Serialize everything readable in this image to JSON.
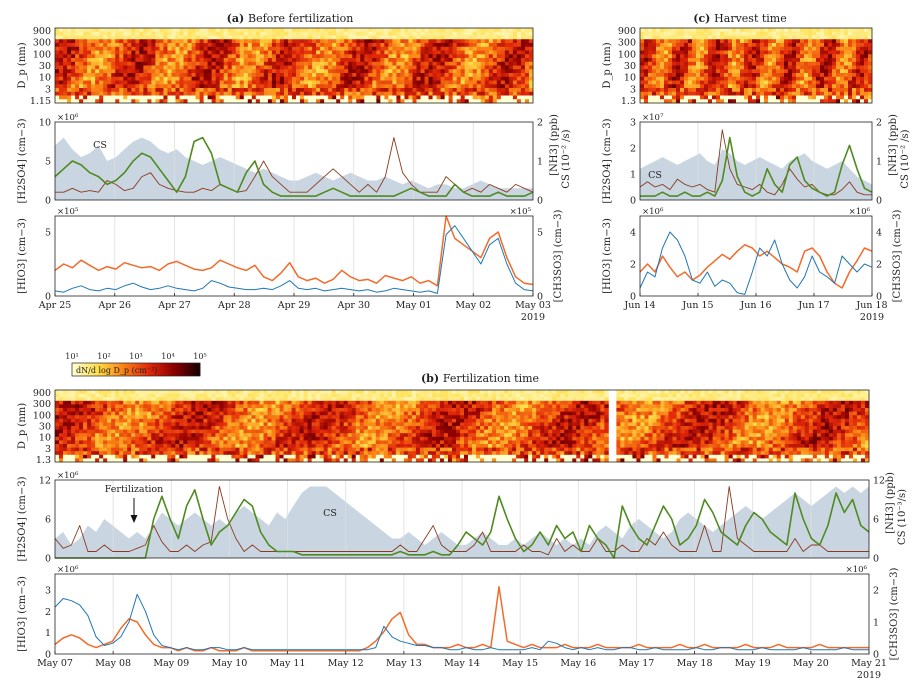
{
  "chart_data": [
    {
      "id": "a",
      "type": "area",
      "title_tag": "(a)",
      "title": "Before fertilization",
      "x_tick_labels": [
        "Apr 25",
        "Apr 26",
        "Apr 27",
        "Apr 28",
        "Apr 29",
        "Apr 30",
        "May 01",
        "May 02",
        "May 03"
      ],
      "year_label": "2019",
      "size_distribution": {
        "ylabel": "D_p (nm)",
        "y_tick_labels": [
          "900",
          "300",
          "100",
          "30",
          "10",
          "3",
          "1.15"
        ]
      },
      "h2so4_nh3_cs": {
        "left_label": "[H2SO4] (cm−3)",
        "left_multiplier": "×10⁶",
        "left_ticks": [
          0,
          5,
          10
        ],
        "right_label": "[NH3] (ppb)",
        "right_label2": "CS (10⁻² /s)",
        "right_ticks": [
          0,
          1,
          2
        ],
        "cs_text": "CS",
        "h2so4": [
          1,
          1,
          1.5,
          1,
          1.2,
          1,
          2.5,
          2,
          1.2,
          1.5,
          3,
          3.5,
          2,
          1.5,
          1.2,
          1,
          1,
          1.5,
          1.2,
          2,
          1.5,
          1,
          1.2,
          3,
          5,
          3,
          2,
          1,
          1,
          1,
          2,
          3,
          4,
          3,
          2,
          1,
          2,
          1,
          3,
          8,
          3.5,
          2,
          1,
          1,
          1,
          3,
          2,
          1,
          1.5,
          1,
          2,
          1.5,
          1,
          2,
          1.5,
          1
        ],
        "nh3": [
          0.6,
          0.8,
          1,
          0.9,
          0.7,
          0.6,
          0.4,
          0.5,
          0.7,
          1,
          1.2,
          1.1,
          0.8,
          0.5,
          0.2,
          0.6,
          1.5,
          1.6,
          1.2,
          0.4,
          0.3,
          0.2,
          0.7,
          1,
          0.4,
          0.2,
          0.1,
          0.1,
          0.1,
          0.1,
          0.1,
          0.2,
          0.3,
          0.2,
          0.1,
          0.1,
          0.1,
          0.1,
          0.1,
          0.1,
          0.2,
          0.3,
          0.2,
          0.1,
          0.1,
          0.1,
          0.4,
          0.2,
          0.1,
          0.1,
          0.1,
          0.2,
          0.1,
          0.1,
          0.1,
          0.2
        ],
        "cs": [
          1.4,
          1.6,
          1.3,
          1.1,
          1.2,
          1.4,
          1.0,
          1.1,
          1.3,
          1.5,
          1.6,
          1.5,
          1.3,
          1.2,
          1.3,
          1.1,
          1.0,
          0.9,
          1.0,
          1.1,
          1.0,
          0.9,
          0.8,
          0.7,
          0.8,
          0.7,
          0.6,
          0.5,
          0.5,
          0.6,
          0.7,
          0.6,
          0.5,
          0.6,
          0.7,
          0.6,
          0.5,
          0.5,
          0.6,
          0.5,
          0.4,
          0.5,
          0.4,
          0.3,
          0.4,
          0.4,
          0.3,
          0.3,
          0.4,
          0.5,
          0.4,
          0.3,
          0.3,
          0.3,
          0.3,
          0.3
        ]
      },
      "hio3_ch3so3": {
        "left_label": "[HIO3] (cm−3)",
        "left_multiplier": "×10⁵",
        "left_ticks": [
          0,
          5
        ],
        "right_label": "[CH3SO3] (cm−3)",
        "right_multiplier": "×10⁵",
        "right_ticks": [
          0,
          5
        ],
        "hio3": [
          0.4,
          0.3,
          0.6,
          0.8,
          0.5,
          0.4,
          0.6,
          0.5,
          0.8,
          1,
          0.7,
          0.5,
          0.6,
          0.8,
          0.6,
          0.5,
          0.4,
          0.6,
          1.2,
          1,
          0.7,
          0.6,
          0.5,
          0.5,
          0.6,
          0.5,
          0.8,
          1.2,
          0.6,
          0.5,
          0.6,
          0.4,
          0.5,
          0.6,
          0.5,
          0.4,
          0.5,
          0.3,
          0.4,
          0.6,
          0.5,
          0.4,
          0.3,
          0.4,
          0.2,
          4.8,
          5.5,
          4.5,
          3.5,
          2.5,
          4,
          4.5,
          2.5,
          1,
          0.5,
          0.4
        ],
        "ch3so3": [
          2,
          2.5,
          2.2,
          2.8,
          2.4,
          2.0,
          2.3,
          2.1,
          2.6,
          2.4,
          2.2,
          2.3,
          2.0,
          2.5,
          2.7,
          2.4,
          2.1,
          2.0,
          2.2,
          2.8,
          2.5,
          2.2,
          2.0,
          2.4,
          1.5,
          1.2,
          1.8,
          2.6,
          1.5,
          1.2,
          1.4,
          1.0,
          1.3,
          2.0,
          1.5,
          1.2,
          1.3,
          1.0,
          1.6,
          1.4,
          1.2,
          1.5,
          1.0,
          1.2,
          0.8,
          6.5,
          4.5,
          4,
          3.5,
          3,
          4.5,
          5,
          3,
          1.5,
          1,
          0.9
        ]
      }
    },
    {
      "id": "c",
      "type": "area",
      "title_tag": "(c)",
      "title": "Harvest time",
      "x_tick_labels": [
        "Jun 14",
        "Jun 15",
        "Jun 16",
        "Jun 17",
        "Jun 18"
      ],
      "year_label": "2019",
      "size_distribution": {
        "ylabel": "D_p (nm)",
        "y_tick_labels": [
          "900",
          "300",
          "100",
          "30",
          "10",
          "3",
          "1.3"
        ]
      },
      "h2so4_nh3_cs": {
        "left_label": "[H2SO4] (cm−3)",
        "left_multiplier": "×10⁷",
        "left_ticks": [
          0,
          1,
          2,
          3
        ],
        "right_label": "[NH3] (ppb)",
        "right_label2": "CS (10⁻² /s)",
        "right_ticks": [
          0,
          1,
          2
        ],
        "cs_text": "CS",
        "h2so4": [
          0.5,
          0.7,
          0.5,
          0.6,
          0.4,
          0.8,
          0.6,
          0.5,
          0.6,
          0.4,
          0.3,
          2.7,
          1.2,
          0.6,
          0.5,
          0.4,
          0.6,
          0.3,
          0.2,
          0.6,
          1.2,
          0.8,
          0.5,
          0.6,
          0.3,
          0.2,
          0.2,
          0.4,
          0.7,
          0.3,
          0.2,
          0.2
        ],
        "nh3": [
          0.1,
          0.1,
          0.1,
          0.2,
          0.1,
          0.1,
          0.2,
          0.1,
          0.1,
          0.2,
          0.1,
          0.5,
          1.6,
          0.6,
          0.2,
          0.1,
          0.2,
          0.8,
          0.4,
          0.2,
          0.9,
          1.1,
          0.5,
          0.3,
          0.2,
          0.1,
          0.2,
          0.9,
          1.4,
          0.8,
          0.3,
          0.2
        ],
        "cs": [
          0.8,
          0.9,
          1.0,
          1.1,
          1.0,
          0.9,
          1.0,
          1.1,
          1.2,
          1.0,
          0.9,
          1.3,
          1.2,
          1.0,
          0.9,
          1.0,
          1.1,
          1.0,
          0.9,
          0.8,
          1.0,
          1.1,
          1.2,
          1.0,
          0.9,
          0.8,
          0.9,
          1.0,
          0.8,
          0.6,
          0.5,
          0.4
        ]
      },
      "hio3_ch3so3": {
        "left_label": "[HIO3] (cm−3)",
        "left_multiplier": "×10⁶",
        "left_ticks": [
          0,
          2,
          4
        ],
        "right_label": "[CH3SO3] (cm−3)",
        "right_multiplier": "×10⁶",
        "right_ticks": [
          0,
          2,
          4
        ],
        "hio3": [
          0.5,
          1.5,
          1.2,
          3,
          4,
          3.5,
          2.5,
          1,
          0.8,
          1.5,
          0.6,
          1,
          0.8,
          0.2,
          0.1,
          1.5,
          3,
          2.5,
          3.5,
          2,
          1,
          0.5,
          1.2,
          2.5,
          1.5,
          1.2,
          0.8,
          2.5,
          2,
          1.5,
          2,
          1.8
        ],
        "ch3so3": [
          1.5,
          2,
          1.5,
          2.5,
          1.8,
          1.2,
          1.5,
          1,
          1.3,
          1.8,
          2.2,
          2.6,
          2.3,
          2.8,
          3.2,
          3,
          2.5,
          2.8,
          2.4,
          2,
          1.8,
          1.5,
          2.8,
          3,
          2.5,
          1.5,
          0.8,
          0.5,
          1.5,
          2.2,
          3,
          2.8
        ]
      }
    },
    {
      "id": "b",
      "type": "area",
      "title_tag": "(b)",
      "title": "Fertilization time",
      "x_tick_labels": [
        "May 07",
        "May 08",
        "May 09",
        "May 10",
        "May 11",
        "May 12",
        "May 13",
        "May 14",
        "May 15",
        "May 16",
        "May 17",
        "May 18",
        "May 19",
        "May 20",
        "May 21"
      ],
      "year_label": "2019",
      "colorbar": {
        "label": "dN/d log D_p (cm⁻³)",
        "tick_labels": [
          "10¹",
          "10²",
          "10³",
          "10⁴",
          "10⁵"
        ]
      },
      "size_distribution": {
        "ylabel": "D_p (nm)",
        "y_tick_labels": [
          "900",
          "300",
          "100",
          "30",
          "10",
          "3",
          "1.3"
        ]
      },
      "h2so4_nh3_cs": {
        "left_label": "[H2SO4] (cm−3)",
        "left_multiplier": "×10⁶",
        "left_ticks": [
          0,
          6,
          12
        ],
        "right_label": "[NH3] (ppb)",
        "right_label2": "CS (10⁻³/s)",
        "right_ticks": [
          0,
          6,
          12
        ],
        "cs_text": "CS",
        "annotation": "Fertilization",
        "h2so4": [
          3,
          1.5,
          2,
          5,
          1,
          1,
          2,
          1,
          1,
          1,
          1.5,
          2,
          5,
          2.5,
          1,
          1,
          2,
          1,
          2,
          2.5,
          11,
          6,
          3,
          1,
          2,
          1,
          1,
          1,
          1,
          1,
          1,
          1,
          1,
          1,
          1,
          1,
          1,
          1,
          1,
          1,
          1,
          1,
          2,
          1,
          1,
          3,
          5,
          2,
          1,
          1,
          1,
          2,
          4,
          1,
          1,
          1,
          1,
          2,
          1,
          1,
          0.5,
          3,
          1,
          2,
          1,
          1,
          3,
          1,
          1,
          2,
          1,
          1,
          3,
          2,
          4,
          2,
          1,
          1,
          1,
          5,
          1,
          1,
          11,
          3,
          2,
          1,
          1,
          1,
          1,
          1,
          3,
          1,
          2,
          2,
          1,
          1,
          1,
          1,
          1,
          1
        ],
        "nh3": [
          0,
          0,
          0,
          0,
          0,
          0,
          0,
          0,
          0,
          0,
          0,
          0,
          6,
          9.5,
          6,
          3,
          8,
          10.5,
          6,
          2,
          4,
          5,
          7,
          9,
          8,
          4,
          2,
          1,
          1,
          1,
          0.5,
          0.5,
          0.5,
          0.5,
          0.5,
          0.5,
          0.5,
          0.5,
          0.5,
          0.5,
          0.5,
          0.5,
          1,
          0.5,
          0.5,
          0.5,
          1,
          0.5,
          0.5,
          2,
          4,
          3,
          2,
          4,
          9.5,
          6,
          3,
          1,
          2,
          4,
          2,
          5,
          3,
          4,
          1,
          5,
          3,
          2,
          0,
          8,
          5,
          3,
          2,
          5,
          8,
          6,
          2,
          3,
          5,
          9,
          7,
          4,
          3,
          2,
          5,
          7,
          6,
          4,
          3,
          2,
          10,
          6,
          3,
          2,
          5,
          10,
          7,
          9,
          5,
          4
        ],
        "cs": [
          3,
          4,
          2,
          3,
          5,
          4,
          6,
          5,
          4,
          3,
          4,
          3,
          5,
          7,
          6,
          5,
          6,
          7,
          6,
          5,
          6,
          5,
          7,
          8,
          7,
          6,
          5,
          7,
          6,
          8,
          10,
          11,
          11,
          11,
          10,
          9,
          8,
          7,
          6,
          5,
          4,
          3,
          3,
          4,
          3,
          2,
          3,
          4,
          3,
          2,
          2,
          3,
          4,
          3,
          2,
          2,
          3,
          2,
          3,
          4,
          3,
          2,
          3,
          2,
          3,
          2,
          4,
          5,
          4,
          3,
          5,
          6,
          5,
          4,
          3,
          4,
          6,
          7,
          6,
          5,
          4,
          5,
          6,
          7,
          8,
          7,
          6,
          7,
          8,
          9,
          10,
          9,
          8,
          9,
          10,
          11,
          10,
          11,
          10,
          11
        ]
      },
      "hio3_ch3so3": {
        "left_label": "[HIO3] (cm−3)",
        "left_multiplier": "×10⁶",
        "left_ticks": [
          0,
          1,
          2,
          3
        ],
        "right_label": "[CH3SO3] (cm−3)",
        "right_multiplier": "×10⁶",
        "right_ticks": [
          0,
          1,
          2
        ],
        "hio3": [
          2.2,
          2.6,
          2.5,
          2.3,
          1.8,
          0.8,
          0.4,
          0.5,
          0.8,
          1.5,
          2.8,
          2.0,
          0.9,
          0.4,
          0.3,
          0.2,
          0.3,
          0.2,
          0.2,
          0.3,
          0.3,
          0.2,
          0.2,
          0.3,
          0.2,
          0.2,
          0.2,
          0.2,
          0.2,
          0.2,
          0.2,
          0.2,
          0.2,
          0.2,
          0.2,
          0.2,
          0.2,
          0.2,
          0.2,
          0.3,
          1.3,
          0.8,
          0.6,
          0.5,
          0.4,
          0.4,
          0.3,
          0.3,
          0.2,
          0.2,
          0.3,
          0.2,
          0.2,
          0.3,
          0.2,
          0.2,
          0.2,
          0.2,
          0.3,
          0.2,
          0.6,
          0.5,
          0.3,
          0.2,
          0.3,
          0.2,
          0.3,
          0.2,
          0.2,
          0.3,
          0.3,
          0.2,
          0.2,
          0.3,
          0.2,
          0.2,
          0.2,
          0.2,
          0.3,
          0.2,
          0.2,
          0.3,
          0.3,
          0.2,
          0.2,
          0.2,
          0.3,
          0.2,
          0.2,
          0.2,
          0.2,
          0.3,
          0.2,
          0.2,
          0.2,
          0.2,
          0.3,
          0.2,
          0.2,
          0.2
        ],
        "ch3so3": [
          0.3,
          0.5,
          0.6,
          0.5,
          0.3,
          0.2,
          0.3,
          0.4,
          0.8,
          1.1,
          1.0,
          0.6,
          0.3,
          0.2,
          0.2,
          0.1,
          0.2,
          0.1,
          0.1,
          0.2,
          0.1,
          0.1,
          0.1,
          0.2,
          0.1,
          0.1,
          0.1,
          0.1,
          0.1,
          0.1,
          0.1,
          0.1,
          0.1,
          0.1,
          0.1,
          0.1,
          0.1,
          0.1,
          0.2,
          0.4,
          0.7,
          1.1,
          1.3,
          0.6,
          0.3,
          0.3,
          0.2,
          0.2,
          0.2,
          0.3,
          0.2,
          0.2,
          0.3,
          0.2,
          2.1,
          0.4,
          0.3,
          0.2,
          0.3,
          0.2,
          0.2,
          0.2,
          0.3,
          0.2,
          0.2,
          0.2,
          0.3,
          0.2,
          0.2,
          0.2,
          0.2,
          0.3,
          0.2,
          0.2,
          0.2,
          0.2,
          0.3,
          0.2,
          0.2,
          0.3,
          0.2,
          0.2,
          0.2,
          0.2,
          0.3,
          0.2,
          0.2,
          0.2,
          0.3,
          0.2,
          0.2,
          0.2,
          0.2,
          0.3,
          0.2,
          0.2,
          0.2,
          0.2,
          0.2,
          0.2
        ]
      }
    }
  ],
  "colors": {
    "h2so4": "#8b3a1e",
    "nh3": "#4f8a1f",
    "cs_fill": "#c9d6e2",
    "hio3": "#1f77b4",
    "ch3so3": "#f26b2a",
    "axis": "#222222"
  }
}
